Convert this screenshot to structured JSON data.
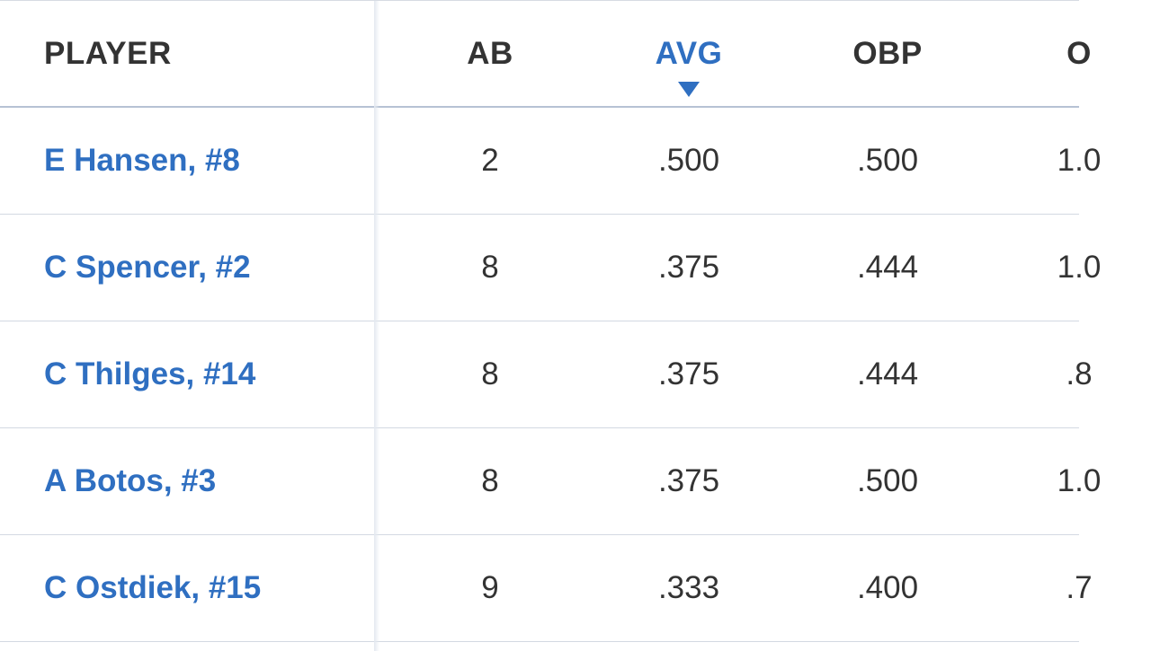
{
  "table": {
    "headers": [
      "PLAYER",
      "AB",
      "AVG",
      "OBP",
      "O"
    ],
    "sorted_column": 2,
    "rows": [
      [
        "E Hansen, #8",
        "2",
        ".500",
        ".500",
        "1.0"
      ],
      [
        "C Spencer, #2",
        "8",
        ".375",
        ".444",
        "1.0"
      ],
      [
        "C Thilges, #14",
        "8",
        ".375",
        ".444",
        ".8"
      ],
      [
        "A Botos, #3",
        "8",
        ".375",
        ".500",
        "1.0"
      ],
      [
        "C Ostdiek, #15",
        "9",
        ".333",
        ".400",
        ".7"
      ]
    ]
  }
}
